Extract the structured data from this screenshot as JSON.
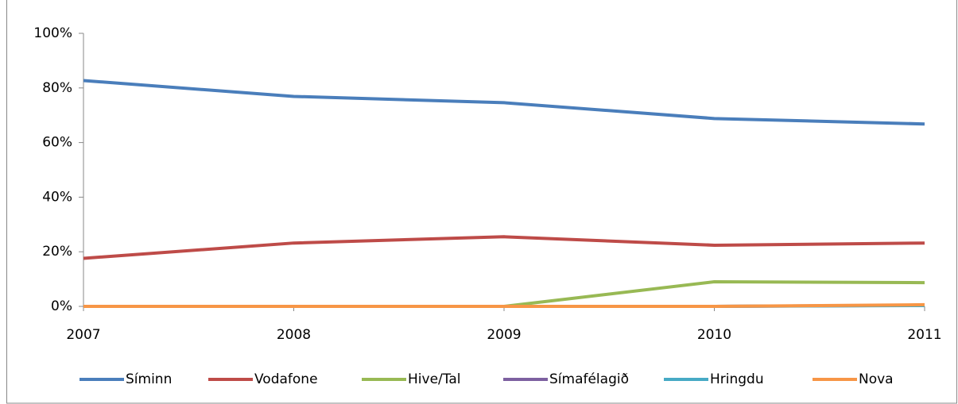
{
  "chart_data": {
    "type": "line",
    "x": [
      2007,
      2008,
      2009,
      2010,
      2011
    ],
    "xlim": [
      2007,
      2011
    ],
    "xticks": [
      2007,
      2008,
      2009,
      2010,
      2011
    ],
    "ylim": [
      0,
      100
    ],
    "yticks": [
      {
        "value": 0,
        "label": "0%"
      },
      {
        "value": 20,
        "label": "20%"
      },
      {
        "value": 40,
        "label": "40%"
      },
      {
        "value": 60,
        "label": "60%"
      },
      {
        "value": 80,
        "label": "80%"
      },
      {
        "value": 100,
        "label": "100%"
      }
    ],
    "legend": "bottom",
    "series": [
      {
        "name": "Síminn",
        "color": "#4a7ebb",
        "values": [
          82.7,
          76.9,
          74.6,
          68.8,
          66.8
        ]
      },
      {
        "name": "Vodafone",
        "color": "#be4b48",
        "values": [
          17.6,
          23.2,
          25.5,
          22.4,
          23.2
        ]
      },
      {
        "name": "Hive/Tal",
        "color": "#98b954",
        "values": [
          0,
          0,
          0,
          9,
          8.7
        ]
      },
      {
        "name": "Símafélagið",
        "color": "#7d60a0",
        "values": [
          0,
          0,
          0,
          0,
          0.4
        ]
      },
      {
        "name": "Hringdu",
        "color": "#46aac5",
        "values": [
          0,
          0,
          0,
          0,
          0.3
        ]
      },
      {
        "name": "Nova",
        "color": "#f79646",
        "values": [
          0,
          0,
          0,
          0,
          0.6
        ]
      }
    ]
  }
}
